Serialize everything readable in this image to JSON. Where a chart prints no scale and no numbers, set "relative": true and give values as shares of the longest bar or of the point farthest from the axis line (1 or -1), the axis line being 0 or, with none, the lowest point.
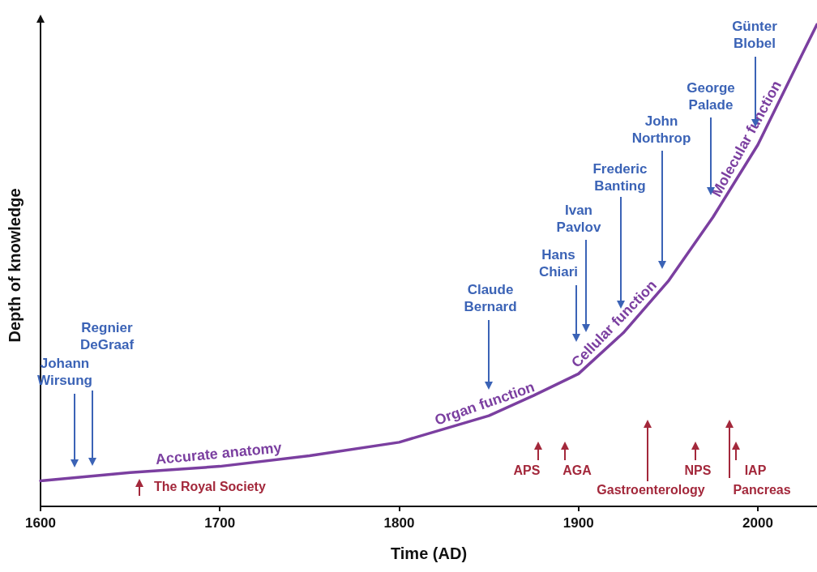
{
  "chart_data": {
    "type": "line",
    "relative": true,
    "xlabel": "Time (AD)",
    "ylabel": "Depth of knowledge",
    "xlim": [
      1600,
      2033
    ],
    "xticks": [
      1600,
      1700,
      1800,
      1900,
      2000
    ],
    "series": [
      {
        "color": "#7b3fa0",
        "x": [
          1600,
          1650,
          1700,
          1750,
          1800,
          1850,
          1875,
          1900,
          1925,
          1950,
          1975,
          2000,
          2025,
          2033
        ],
        "values": [
          0.053,
          0.07,
          0.083,
          0.105,
          0.133,
          0.188,
          0.23,
          0.275,
          0.36,
          0.467,
          0.6,
          0.75,
          0.94,
          1
        ]
      }
    ],
    "annotations": [
      {
        "text": "Accurate anatomy",
        "x": 1700,
        "y": 0.083
      },
      {
        "text": "Organ function",
        "x": 1850,
        "y": 0.188
      },
      {
        "text": "Cellular function",
        "x": 1925,
        "y": 0.36
      },
      {
        "text": "Molecular function",
        "x": 2000,
        "y": 0.75
      },
      "Johann\nWirsung",
      "Regnier\nDeGraaf",
      "Claude\nBernard",
      "Hans\nChiari",
      "Ivan\nPavlov",
      "Frederic\nBanting",
      "John\nNorthrop",
      "George\nPalade",
      "Günter\nBlobel",
      "The Royal Society",
      "APS",
      "AGA",
      "Gastroenterology",
      "NPS",
      "IAP",
      "Pancreas"
    ]
  }
}
